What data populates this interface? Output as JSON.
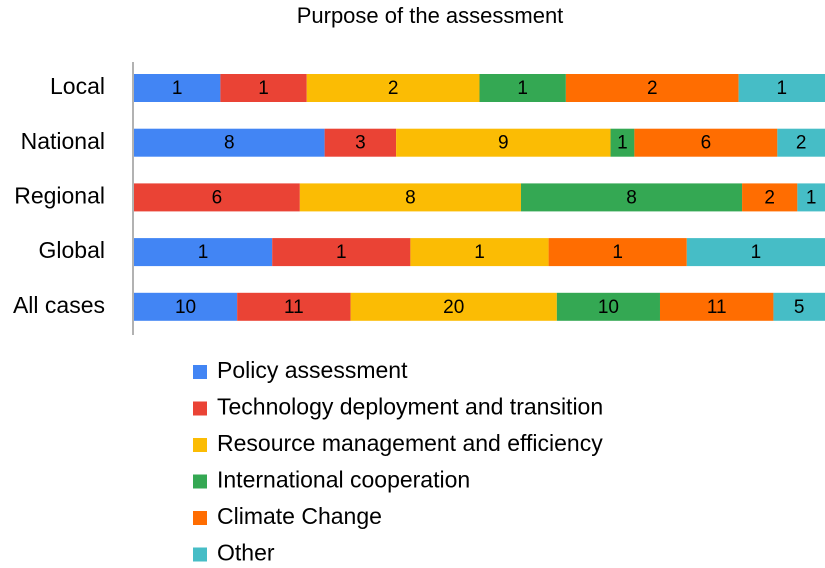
{
  "chart_data": {
    "type": "bar",
    "orientation": "horizontal",
    "stacked": "percent",
    "title": "Purpose of the assessment",
    "categories": [
      "Local",
      "National",
      "Regional",
      "Global",
      "All cases"
    ],
    "series": [
      {
        "name": "Policy assessment",
        "color": "#4285f4",
        "values": [
          1,
          8,
          0,
          1,
          10
        ]
      },
      {
        "name": "Technology deployment and transition",
        "color": "#ea4335",
        "values": [
          1,
          3,
          6,
          1,
          11
        ]
      },
      {
        "name": "Resource management and efficiency",
        "color": "#fbbc04",
        "values": [
          2,
          9,
          8,
          1,
          20
        ]
      },
      {
        "name": "International cooperation",
        "color": "#34a853",
        "values": [
          1,
          1,
          8,
          0,
          10
        ]
      },
      {
        "name": "Climate Change",
        "color": "#ff6d01",
        "values": [
          2,
          6,
          2,
          1,
          11
        ]
      },
      {
        "name": "Other",
        "color": "#46bdc6",
        "values": [
          1,
          2,
          1,
          1,
          5
        ]
      }
    ],
    "legend": "bottom"
  }
}
